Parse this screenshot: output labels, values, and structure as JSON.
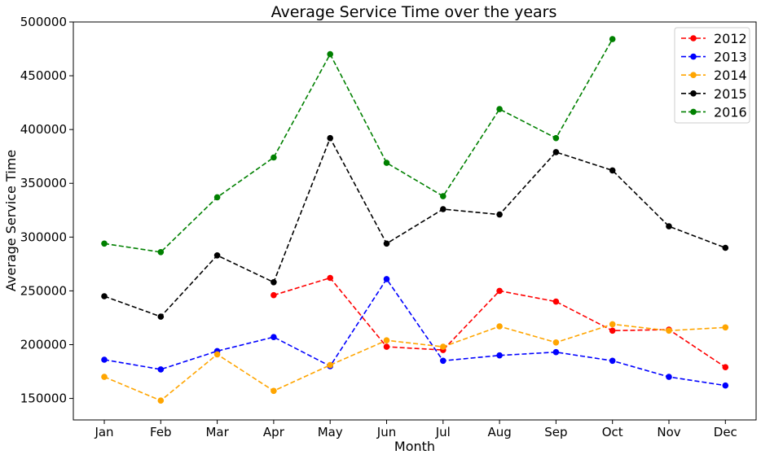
{
  "chart_data": {
    "type": "line",
    "title": "Average Service Time over the years",
    "xlabel": "Month",
    "ylabel": "Average Service Time",
    "categories": [
      "Jan",
      "Feb",
      "Mar",
      "Apr",
      "May",
      "Jun",
      "Jul",
      "Aug",
      "Sep",
      "Oct",
      "Nov",
      "Dec"
    ],
    "ylim": [
      130000,
      500000
    ],
    "yticks": [
      150000,
      200000,
      250000,
      300000,
      350000,
      400000,
      450000,
      500000
    ],
    "ytick_labels": [
      "150000",
      "200000",
      "250000",
      "300000",
      "350000",
      "400000",
      "450000",
      "500000"
    ],
    "grid": false,
    "legend_position": "top-right",
    "line_style": "dashed",
    "marker": "circle",
    "series": [
      {
        "name": "2012",
        "color": "#ff0000",
        "values": [
          null,
          null,
          null,
          246000,
          262000,
          198000,
          195000,
          250000,
          240000,
          213000,
          214000,
          179000
        ]
      },
      {
        "name": "2013",
        "color": "#0000ff",
        "values": [
          186000,
          177000,
          194000,
          207000,
          180000,
          261000,
          185000,
          190000,
          193000,
          185000,
          170000,
          162000
        ]
      },
      {
        "name": "2014",
        "color": "#ffa500",
        "values": [
          170000,
          148000,
          191000,
          157000,
          181000,
          204000,
          198000,
          217000,
          202000,
          219000,
          213000,
          216000
        ]
      },
      {
        "name": "2015",
        "color": "#000000",
        "values": [
          245000,
          226000,
          283000,
          258000,
          392000,
          294000,
          326000,
          321000,
          379000,
          362000,
          310000,
          290000
        ]
      },
      {
        "name": "2016",
        "color": "#008000",
        "values": [
          294000,
          286000,
          337000,
          374000,
          470000,
          369000,
          338000,
          419000,
          392000,
          484000,
          null,
          null
        ]
      }
    ]
  }
}
